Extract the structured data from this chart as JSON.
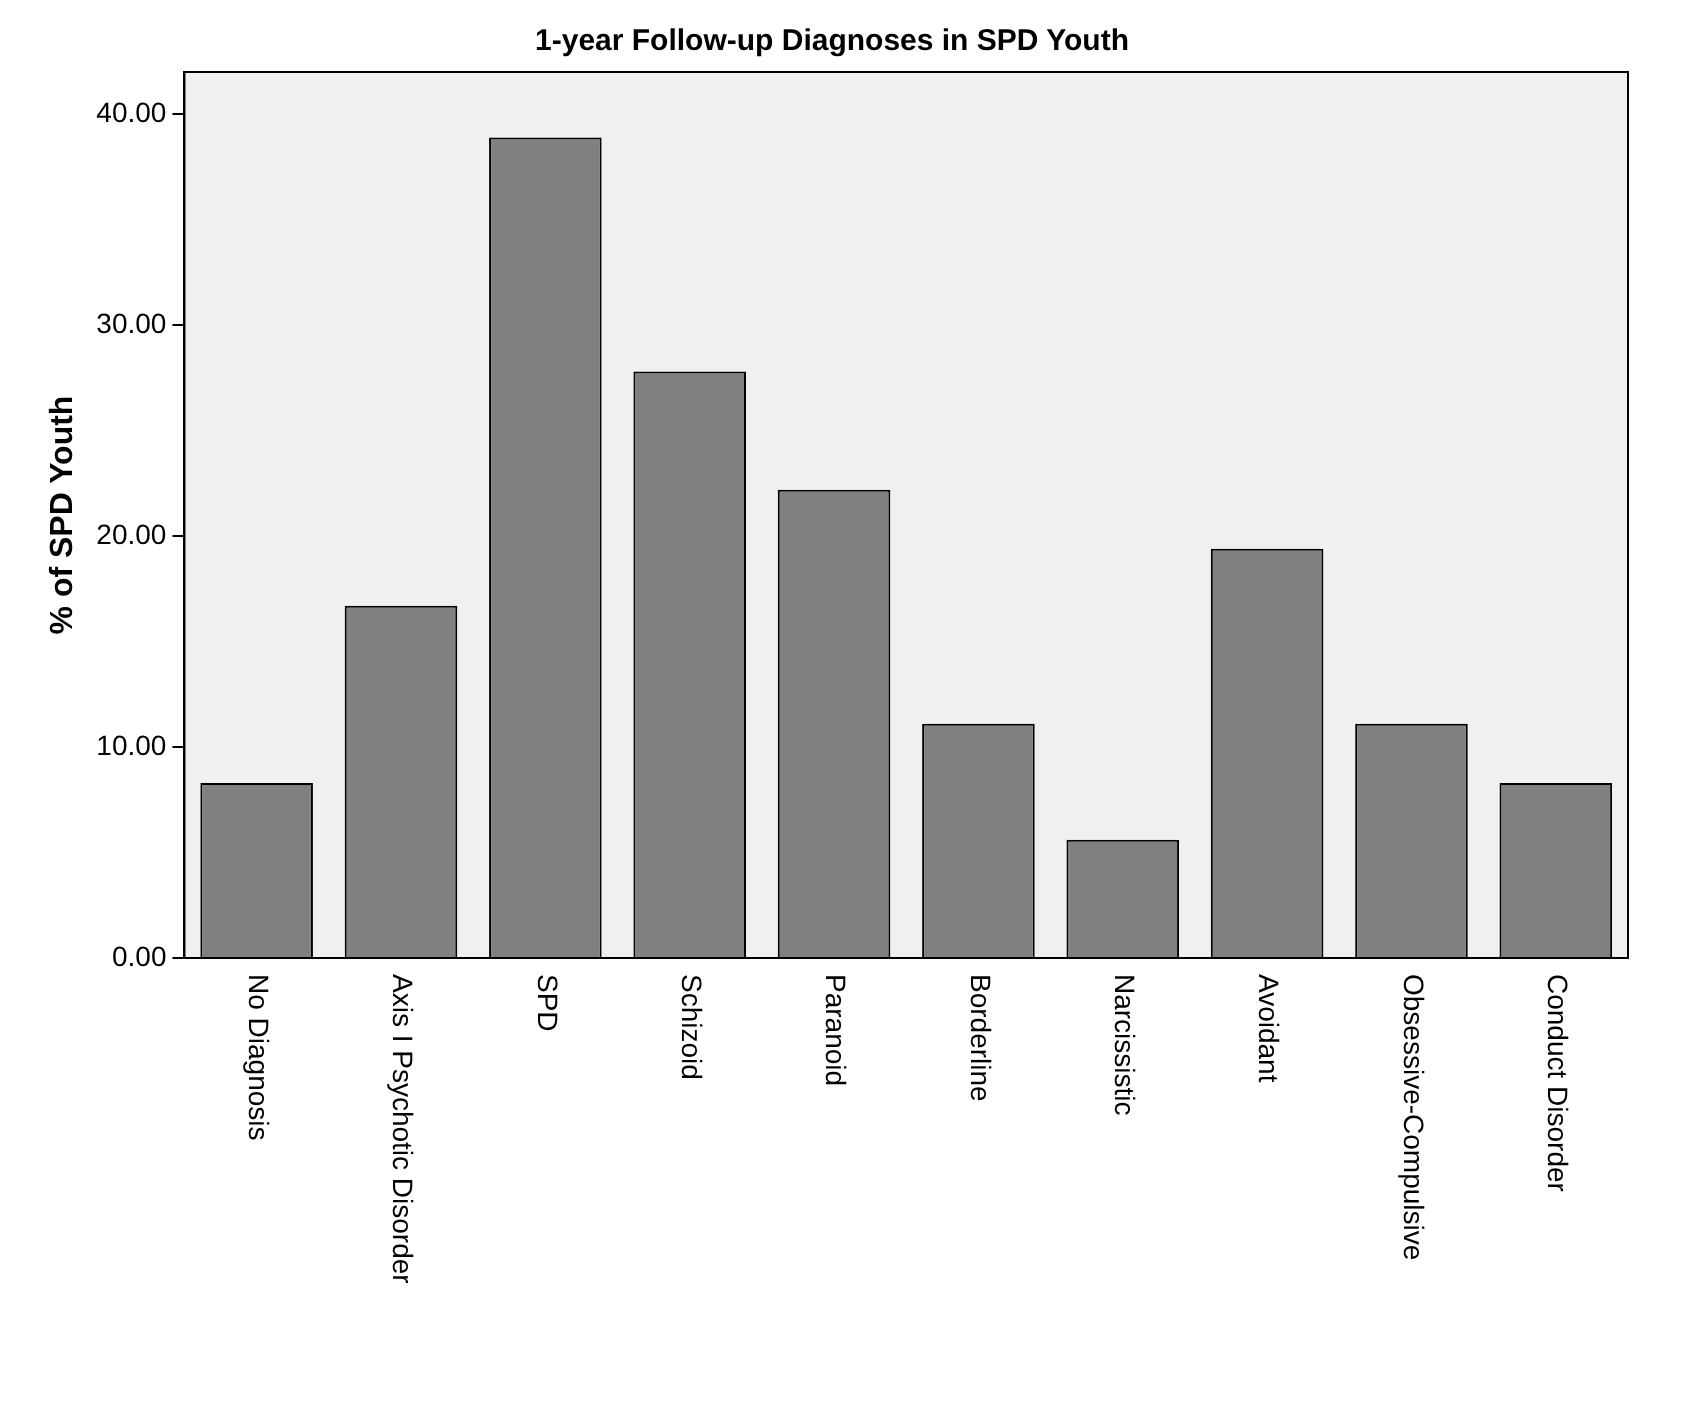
{
  "chart_data": {
    "type": "bar",
    "title": "1-year Follow-up Diagnoses in SPD Youth",
    "ylabel": "% of SPD Youth",
    "categories": [
      "No Diagnosis",
      "Axis I Psychotic Disorder",
      "SPD",
      "Schizoid",
      "Paranoid",
      "Borderline",
      "Narcissistic",
      "Avoidant",
      "Obsessive-Compulsive",
      "Conduct Disorder"
    ],
    "values": [
      8.3,
      16.7,
      38.9,
      27.8,
      22.2,
      11.1,
      5.6,
      19.4,
      11.1,
      8.3
    ],
    "color": "#808080",
    "ylim": [
      0,
      42
    ],
    "yticks": [
      {
        "value": 0,
        "label": "0.00"
      },
      {
        "value": 10,
        "label": "10.00"
      },
      {
        "value": 20,
        "label": "20.00"
      },
      {
        "value": 30,
        "label": "30.00"
      },
      {
        "value": 40,
        "label": "40.00"
      }
    ],
    "grid": false
  }
}
